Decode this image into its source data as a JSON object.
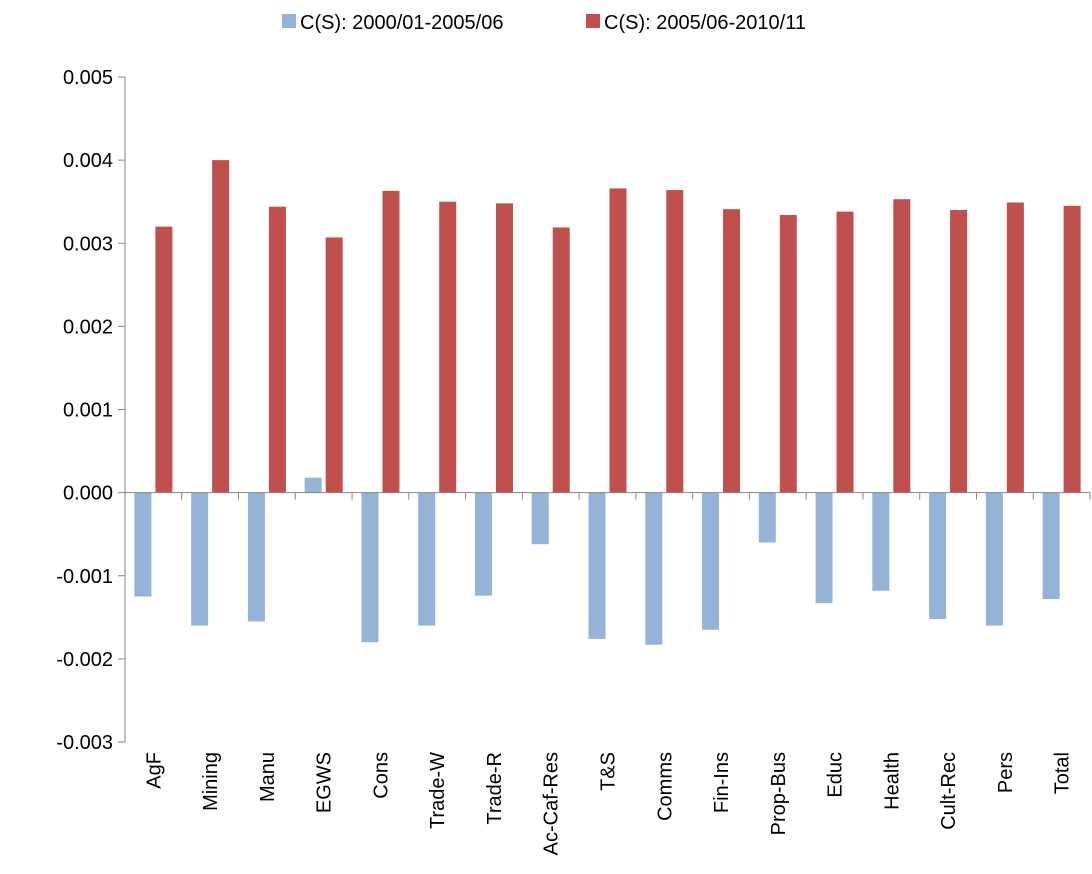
{
  "chart_data": {
    "type": "bar",
    "categories": [
      "AgF",
      "Mining",
      "Manu",
      "EGWS",
      "Cons",
      "Trade-W",
      "Trade-R",
      "Ac-Caf-Res",
      "T&S",
      "Comms",
      "Fin-Ins",
      "Prop-Bus",
      "Educ",
      "Health",
      "Cult-Rec",
      "Pers",
      "Total"
    ],
    "series": [
      {
        "name": "C(S): 2000/01-2005/06",
        "color": "#95b3d7",
        "values": [
          -0.00125,
          -0.0016,
          -0.00155,
          0.00018,
          -0.0018,
          -0.0016,
          -0.00124,
          -0.00062,
          -0.00176,
          -0.00183,
          -0.00165,
          -0.0006,
          -0.00133,
          -0.00118,
          -0.00152,
          -0.0016,
          -0.00128
        ]
      },
      {
        "name": "C(S): 2005/06-2010/11",
        "color": "#c0504d",
        "values": [
          0.0032,
          0.004,
          0.00344,
          0.00307,
          0.00363,
          0.0035,
          0.00348,
          0.00319,
          0.00366,
          0.00364,
          0.00341,
          0.00334,
          0.00338,
          0.00353,
          0.0034,
          0.00349,
          0.00345
        ]
      }
    ],
    "yticks": [
      "0.005",
      "0.004",
      "0.003",
      "0.002",
      "0.001",
      "0.000",
      "-0.001",
      "-0.002",
      "-0.003"
    ],
    "ylim": [
      -0.003,
      0.005
    ],
    "legend_position": "top",
    "grid": false,
    "title": "",
    "xlabel": "",
    "ylabel": ""
  }
}
